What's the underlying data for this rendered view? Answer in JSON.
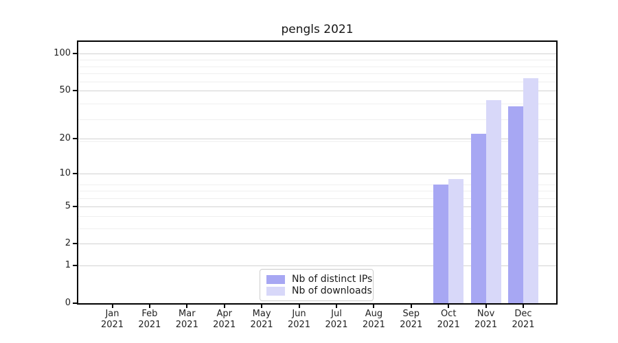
{
  "chart_data": {
    "type": "bar",
    "title": "pengls 2021",
    "categories": [
      "Jan 2021",
      "Feb 2021",
      "Mar 2021",
      "Apr 2021",
      "May 2021",
      "Jun 2021",
      "Jul 2021",
      "Aug 2021",
      "Sep 2021",
      "Oct 2021",
      "Nov 2021",
      "Dec 2021"
    ],
    "series": [
      {
        "name": "Nb of distinct IPs",
        "color": "#a7a7f3",
        "values": [
          0,
          0,
          0,
          0,
          0,
          0,
          0,
          0,
          0,
          8,
          22,
          37
        ]
      },
      {
        "name": "Nb of downloads",
        "color": "#d8d8f9",
        "values": [
          0,
          0,
          0,
          0,
          0,
          0,
          0,
          0,
          0,
          9,
          42,
          63
        ]
      }
    ],
    "xlabel": "",
    "ylabel": "",
    "y_axis": {
      "scale": "log1p",
      "tick_values": [
        100,
        50,
        20,
        10,
        5,
        2,
        1,
        0
      ],
      "tick_labels": [
        "100",
        "50",
        "20",
        "10",
        "5",
        "2",
        "1",
        "0"
      ],
      "top_value": 122
    },
    "grid": "horizontal-major-and-minor",
    "legend": {
      "position": "inside-bottom-center",
      "entries": [
        "Nb of distinct IPs",
        "Nb of downloads"
      ]
    },
    "colors": {
      "major_grid": "#d2d2d2",
      "minor_grid": "#efefef",
      "spine": "#000000",
      "text": "#1f1f1f"
    }
  }
}
